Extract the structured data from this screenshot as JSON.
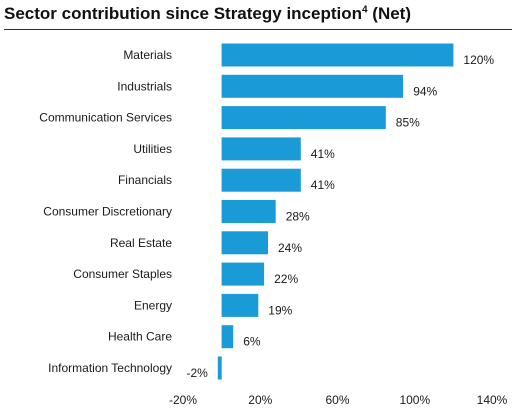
{
  "title": {
    "main": "Sector contribution since Strategy inception",
    "superscript": "4",
    "suffix": " (Net)"
  },
  "colors": {
    "bar": "#1a9ad6",
    "axis": "#444444",
    "text": "#1a1a1a"
  },
  "chart_data": {
    "type": "bar",
    "orientation": "horizontal",
    "title": "Sector contribution since Strategy inception4 (Net)",
    "categories": [
      "Materials",
      "Industrials",
      "Communication Services",
      "Utilities",
      "Financials",
      "Consumer Discretionary",
      "Real Estate",
      "Consumer Staples",
      "Energy",
      "Health Care",
      "Information Technology"
    ],
    "values": [
      120,
      94,
      85,
      41,
      41,
      28,
      24,
      22,
      19,
      6,
      -2
    ],
    "value_labels": [
      "120%",
      "94%",
      "85%",
      "41%",
      "41%",
      "28%",
      "24%",
      "22%",
      "19%",
      "6%",
      "-2%"
    ],
    "xlim": [
      -20,
      140
    ],
    "xticks": [
      -20,
      20,
      60,
      100,
      140
    ],
    "xtick_labels": [
      "-20%",
      "20%",
      "60%",
      "100%",
      "140%"
    ],
    "grid": false,
    "legend": "none"
  }
}
